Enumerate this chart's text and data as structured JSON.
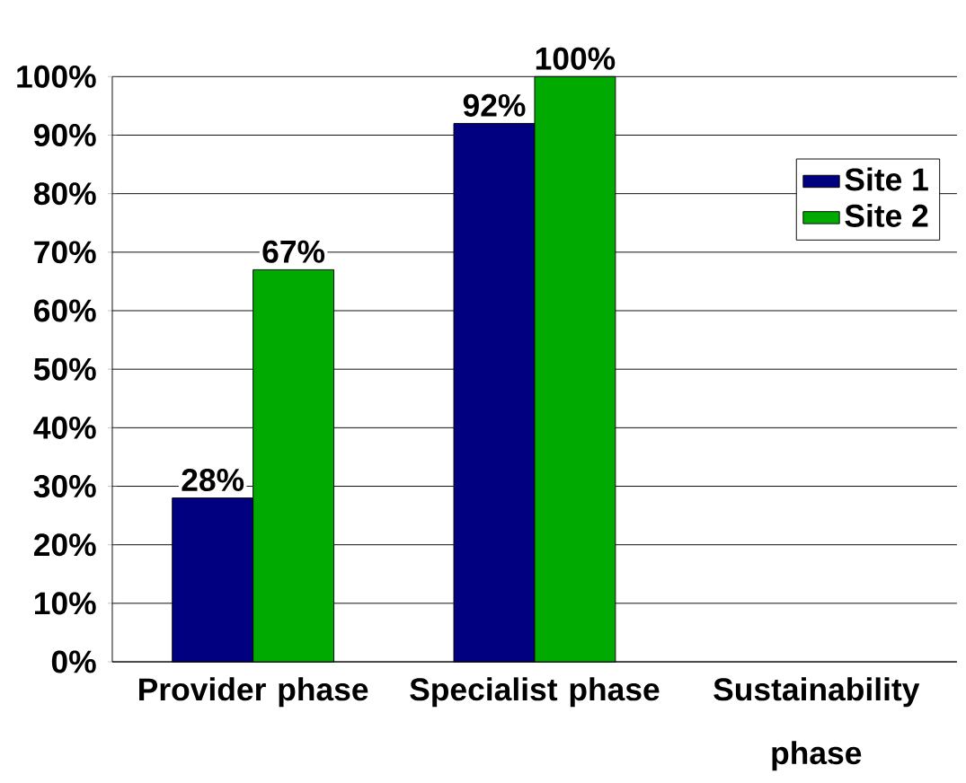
{
  "chart_data": {
    "type": "bar",
    "categories": [
      "Provider phase",
      "Specialist phase",
      "Sustainability phase"
    ],
    "series": [
      {
        "name": "Site 1",
        "color": "#000080",
        "values": [
          28,
          92,
          null
        ],
        "value_labels": [
          "28%",
          "92%",
          null
        ]
      },
      {
        "name": "Site 2",
        "color": "#00aa00",
        "values": [
          67,
          100,
          null
        ],
        "value_labels": [
          "67%",
          "100%",
          null
        ]
      }
    ],
    "ylim": [
      0,
      100
    ],
    "yticks": [
      {
        "value": 0,
        "label": "0%"
      },
      {
        "value": 10,
        "label": "10%"
      },
      {
        "value": 20,
        "label": "20%"
      },
      {
        "value": 30,
        "label": "30%"
      },
      {
        "value": 40,
        "label": "40%"
      },
      {
        "value": 50,
        "label": "50%"
      },
      {
        "value": 60,
        "label": "60%"
      },
      {
        "value": 70,
        "label": "70%"
      },
      {
        "value": 80,
        "label": "80%"
      },
      {
        "value": 90,
        "label": "90%"
      },
      {
        "value": 100,
        "label": "100%"
      }
    ],
    "grid": "y",
    "legend": "top right"
  }
}
